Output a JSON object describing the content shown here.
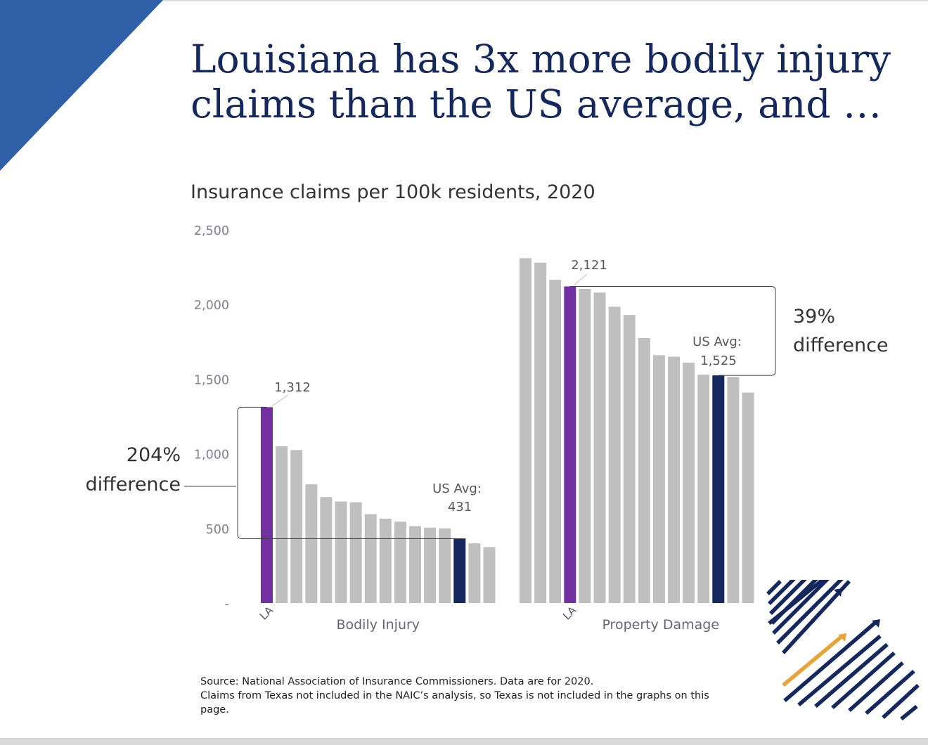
{
  "slide": {
    "title_line1": "Louisiana has 3x more bodily injury",
    "title_line2": "claims than the US average, and …",
    "subtitle": "Insurance claims per 100k residents, 2020",
    "source_line1": "Source: National Association of Insurance Commissioners. Data are for 2020.",
    "source_line2": "Claims from Texas not included in the NAIC’s analysis, so Texas is not included in the graphs on this page."
  },
  "colors": {
    "title": "#14285e",
    "accent_blue": "#2e5fa7",
    "bar_gray": "#bfbfbf",
    "la_purple": "#7030a0",
    "us_avg_navy": "#14285e",
    "logo_orange": "#e8a33a"
  },
  "chart_data": [
    {
      "type": "bar",
      "xlabel": "Bodily Injury",
      "y_ticks": [
        "2,500",
        "2,000",
        "1,500",
        "1,000",
        "500",
        "-"
      ],
      "y_tick_values": [
        2500,
        2000,
        1500,
        1000,
        500,
        0
      ],
      "ylim": [
        0,
        2500
      ],
      "grid": false,
      "values": [
        1312,
        1050,
        1025,
        795,
        710,
        680,
        675,
        595,
        565,
        545,
        515,
        505,
        500,
        431,
        400,
        375
      ],
      "highlight": {
        "la_index": 0,
        "us_avg_index": 13
      },
      "la_tick_label": "LA",
      "la_value_label": "1,312",
      "us_avg_label_line1": "US Avg:",
      "us_avg_label_line2": "431",
      "difference_label_line1": "204%",
      "difference_label_line2": "difference"
    },
    {
      "type": "bar",
      "xlabel": "Property Damage",
      "ylim": [
        0,
        2500
      ],
      "grid": false,
      "values": [
        2310,
        2280,
        2165,
        2121,
        2105,
        2080,
        1985,
        1930,
        1775,
        1660,
        1650,
        1610,
        1530,
        1525,
        1515,
        1410
      ],
      "highlight": {
        "la_index": 3,
        "us_avg_index": 13
      },
      "la_tick_label": "LA",
      "la_value_label": "2,121",
      "us_avg_label_line1": "US Avg:",
      "us_avg_label_line2": "1,525",
      "difference_label_line1": "39%",
      "difference_label_line2": "difference"
    }
  ],
  "logo": {
    "name": "stripes-arrow-logo"
  }
}
